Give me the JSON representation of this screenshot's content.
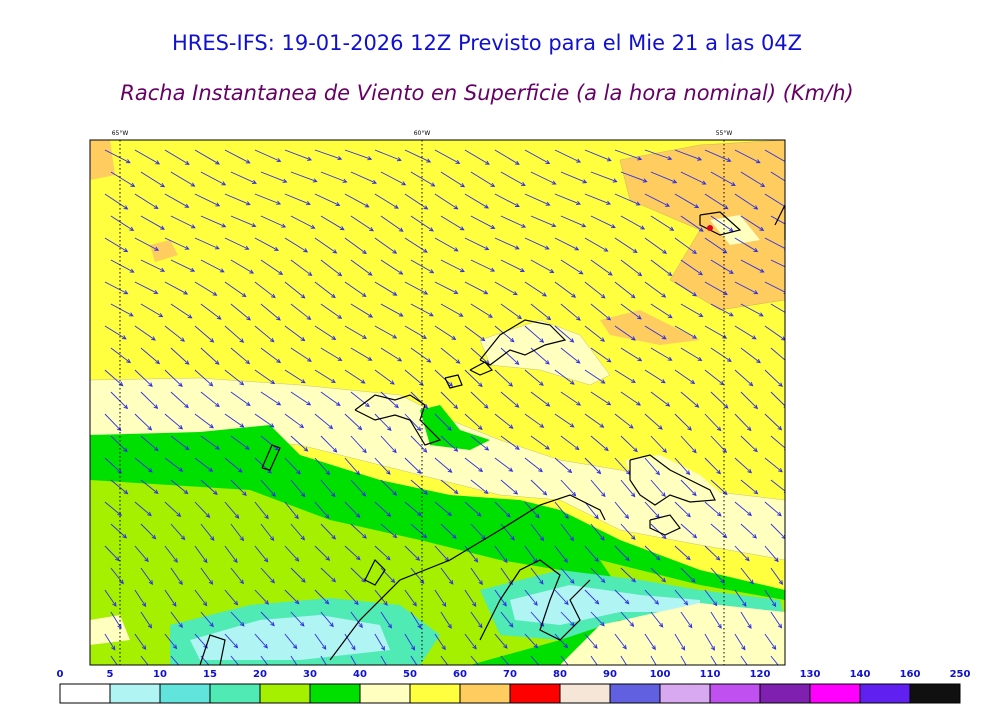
{
  "header": {
    "title": "HRES-IFS: 19-01-2026 12Z Previsto para el Mie 21 a las 04Z",
    "subtitle": "Racha Instantanea de Viento en Superficie (a la hora nominal) (Km/h)"
  },
  "map": {
    "longitudes": [
      "65°W",
      "60°W",
      "55°W"
    ]
  },
  "colorbar": {
    "levels": [
      0,
      5,
      10,
      15,
      20,
      30,
      40,
      50,
      60,
      70,
      80,
      90,
      100,
      110,
      120,
      130,
      140,
      160,
      250
    ],
    "colors": [
      "#ffffff",
      "#b0f4f4",
      "#60e4dc",
      "#50eab4",
      "#a4f000",
      "#00e000",
      "#ffffc0",
      "#ffff40",
      "#ffcc60",
      "#ff0000",
      "#f5e6d8",
      "#6060e0",
      "#d8a8f0",
      "#c050f0",
      "#8020b0",
      "#ff00ff",
      "#6020f0",
      "#101010"
    ]
  }
}
